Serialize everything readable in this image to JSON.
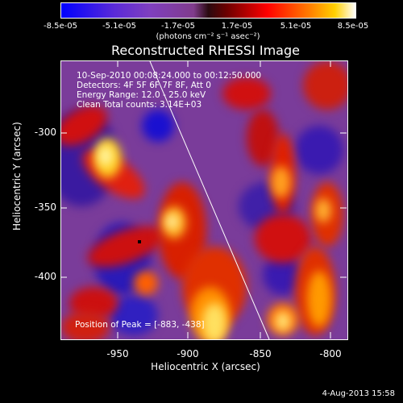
{
  "colorbar": {
    "ticks": [
      "-8.5e-05",
      "-5.1e-05",
      "-1.7e-05",
      "1.7e-05",
      "5.1e-05",
      "8.5e-05"
    ],
    "unit": "(photons cm⁻² s⁻¹ asec⁻²)"
  },
  "title": "Reconstructed RHESSI Image",
  "info": {
    "time": "10-Sep-2010 00:08:24.000 to 00:12:50.000",
    "detectors": "Detectors: 4F 5F 6F 7F 8F, Att 0",
    "energy": "Energy Range: 12.0 - 25.0 keV",
    "clean": "Clean     Total counts: 3.14E+03"
  },
  "peak": "Position of Peak = [-883, -438]",
  "axes": {
    "ylabel": "Heliocentric Y (arcsec)",
    "xlabel": "Heliocentric X (arcsec)",
    "yticks": [
      "-300",
      "-350",
      "-400"
    ],
    "xticks": [
      "-950",
      "-900",
      "-850",
      "-800"
    ]
  },
  "stamp": "4-Aug-2013 15:58"
}
